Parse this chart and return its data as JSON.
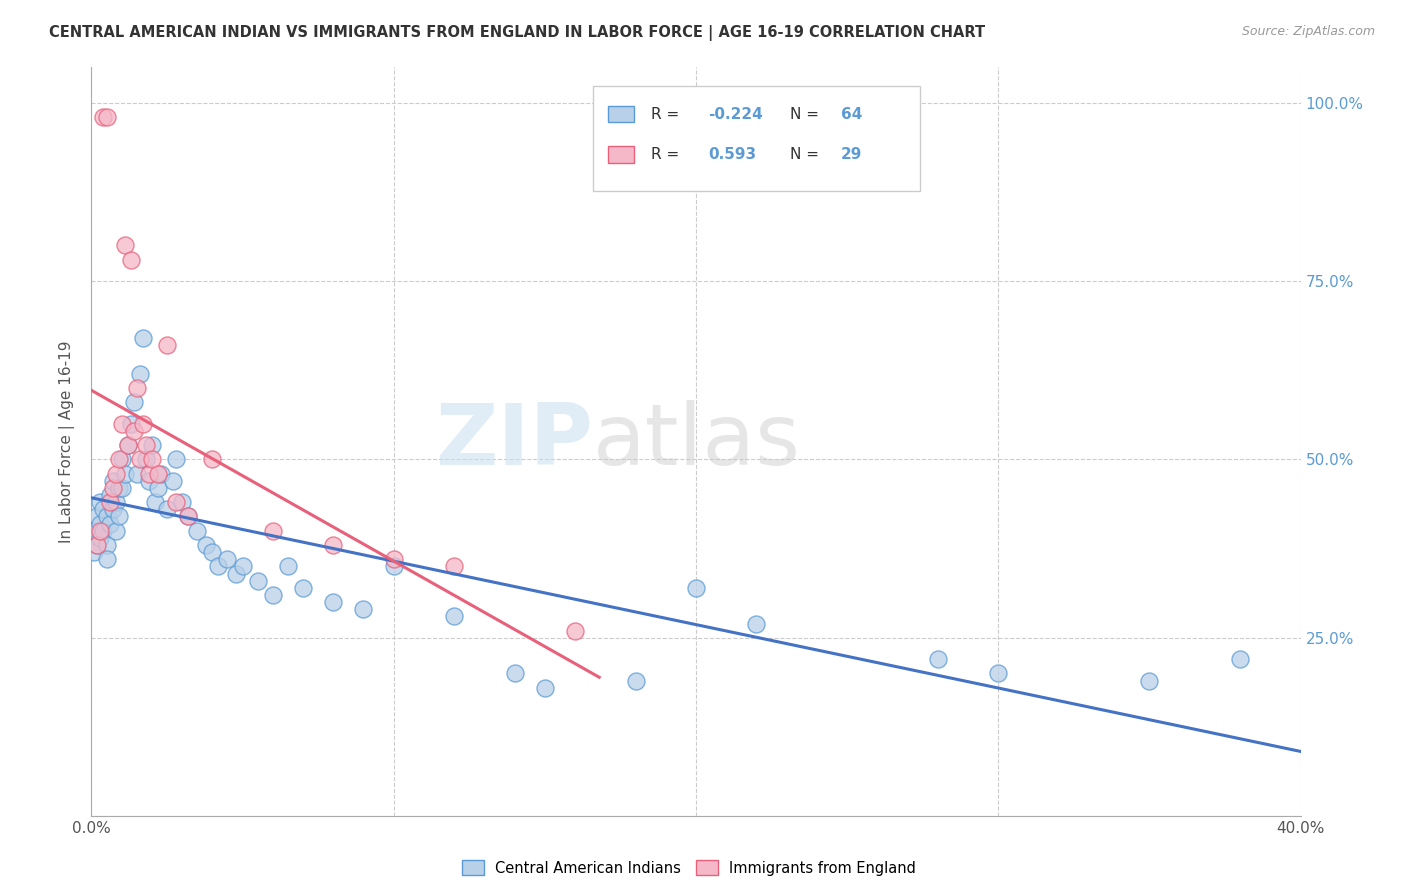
{
  "title": "CENTRAL AMERICAN INDIAN VS IMMIGRANTS FROM ENGLAND IN LABOR FORCE | AGE 16-19 CORRELATION CHART",
  "source": "Source: ZipAtlas.com",
  "ylabel": "In Labor Force | Age 16-19",
  "blue_R": -0.224,
  "blue_N": 64,
  "pink_R": 0.593,
  "pink_N": 29,
  "blue_color": "#b8d0e8",
  "pink_color": "#f5b8c8",
  "blue_edge_color": "#5b9bd5",
  "pink_edge_color": "#e8607a",
  "blue_line_color": "#4472c4",
  "pink_line_color": "#e8607a",
  "legend_label_blue": "Central American Indians",
  "legend_label_pink": "Immigrants from England",
  "watermark": "ZIPatlas",
  "blue_x": [
    0.001,
    0.001,
    0.002,
    0.002,
    0.003,
    0.003,
    0.003,
    0.004,
    0.004,
    0.005,
    0.005,
    0.005,
    0.006,
    0.006,
    0.007,
    0.007,
    0.008,
    0.008,
    0.009,
    0.009,
    0.01,
    0.01,
    0.011,
    0.012,
    0.013,
    0.014,
    0.015,
    0.016,
    0.017,
    0.018,
    0.019,
    0.02,
    0.021,
    0.022,
    0.023,
    0.025,
    0.027,
    0.028,
    0.03,
    0.032,
    0.035,
    0.038,
    0.04,
    0.042,
    0.045,
    0.048,
    0.05,
    0.055,
    0.06,
    0.065,
    0.07,
    0.08,
    0.09,
    0.1,
    0.12,
    0.14,
    0.15,
    0.18,
    0.2,
    0.22,
    0.28,
    0.3,
    0.35,
    0.38
  ],
  "blue_y": [
    0.4,
    0.37,
    0.42,
    0.38,
    0.44,
    0.41,
    0.39,
    0.43,
    0.4,
    0.38,
    0.36,
    0.42,
    0.45,
    0.41,
    0.47,
    0.43,
    0.44,
    0.4,
    0.46,
    0.42,
    0.5,
    0.46,
    0.48,
    0.52,
    0.55,
    0.58,
    0.48,
    0.62,
    0.67,
    0.5,
    0.47,
    0.52,
    0.44,
    0.46,
    0.48,
    0.43,
    0.47,
    0.5,
    0.44,
    0.42,
    0.4,
    0.38,
    0.37,
    0.35,
    0.36,
    0.34,
    0.35,
    0.33,
    0.31,
    0.35,
    0.32,
    0.3,
    0.29,
    0.35,
    0.28,
    0.2,
    0.18,
    0.19,
    0.32,
    0.27,
    0.22,
    0.2,
    0.19,
    0.22
  ],
  "pink_x": [
    0.002,
    0.003,
    0.004,
    0.005,
    0.006,
    0.007,
    0.008,
    0.009,
    0.01,
    0.011,
    0.012,
    0.013,
    0.014,
    0.015,
    0.016,
    0.017,
    0.018,
    0.019,
    0.02,
    0.022,
    0.025,
    0.028,
    0.032,
    0.04,
    0.06,
    0.08,
    0.1,
    0.12,
    0.16
  ],
  "pink_y": [
    0.38,
    0.4,
    0.98,
    0.98,
    0.44,
    0.46,
    0.48,
    0.5,
    0.55,
    0.8,
    0.52,
    0.78,
    0.54,
    0.6,
    0.5,
    0.55,
    0.52,
    0.48,
    0.5,
    0.48,
    0.66,
    0.44,
    0.42,
    0.5,
    0.4,
    0.38,
    0.36,
    0.35,
    0.26
  ]
}
